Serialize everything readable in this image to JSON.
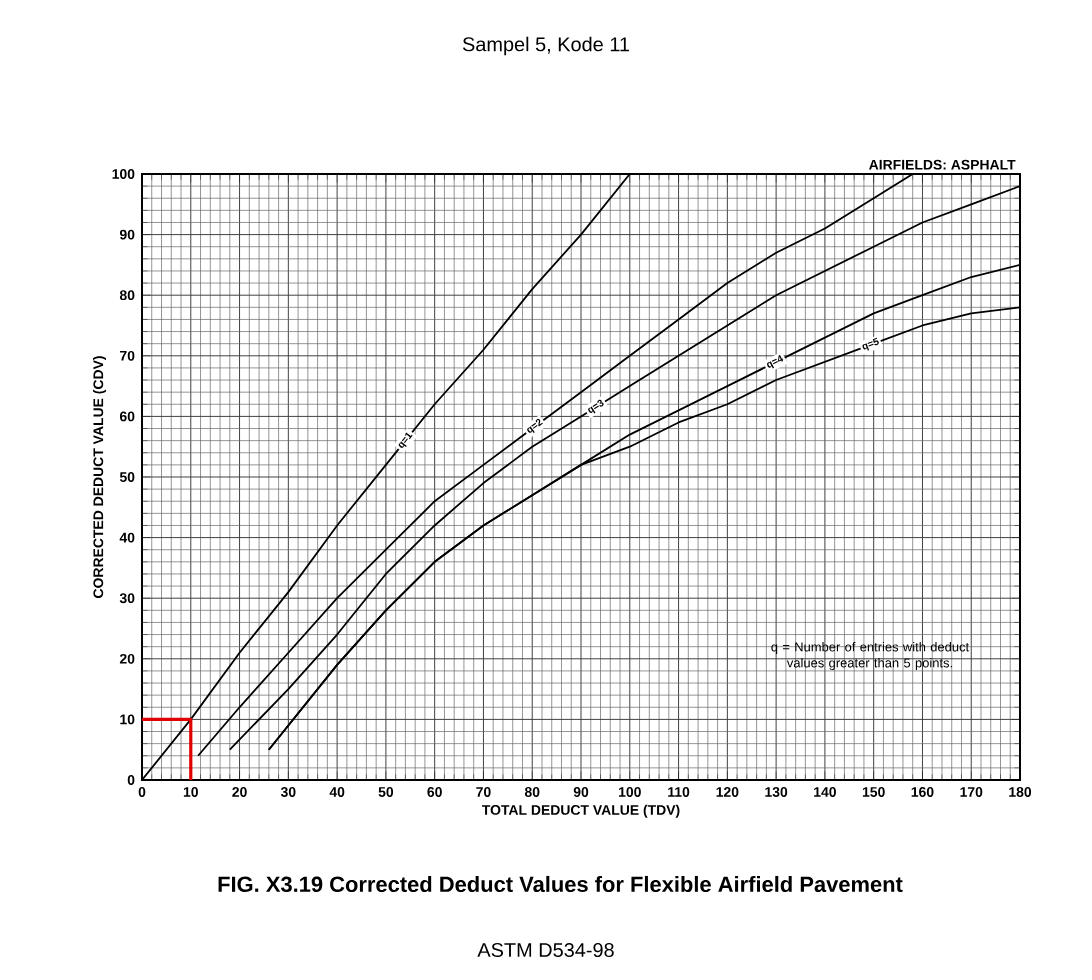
{
  "chart_data": {
    "type": "line",
    "title": "Sampel 5, Kode 11",
    "xlabel": "TOTAL DEDUCT VALUE (TDV)",
    "ylabel": "CORRECTED DEDUCT VALUE (CDV)",
    "xlim": [
      0,
      180
    ],
    "ylim": [
      0,
      100
    ],
    "xticks": [
      0,
      10,
      20,
      30,
      40,
      50,
      60,
      70,
      80,
      90,
      100,
      110,
      120,
      130,
      140,
      150,
      160,
      170,
      180
    ],
    "yticks": [
      0,
      10,
      20,
      30,
      40,
      50,
      60,
      70,
      80,
      90,
      100
    ],
    "grid": true,
    "marker": "none",
    "line_style": "solid",
    "series": [
      {
        "name": "q=1",
        "color": "#000000",
        "x": [
          0,
          10,
          20,
          30,
          40,
          50,
          60,
          70,
          80,
          90,
          100
        ],
        "values": [
          0,
          10,
          21,
          31,
          42,
          52,
          62,
          71,
          81,
          90,
          100
        ]
      },
      {
        "name": "q=2",
        "color": "#000000",
        "x": [
          11.5,
          20,
          30,
          40,
          50,
          60,
          70,
          80,
          90,
          100,
          110,
          120,
          130,
          140,
          150,
          158
        ],
        "values": [
          4,
          12,
          21,
          30,
          38,
          46,
          52,
          58,
          64,
          70,
          76,
          82,
          87,
          91,
          96,
          100
        ]
      },
      {
        "name": "q=3",
        "color": "#000000",
        "x": [
          18,
          30,
          40,
          50,
          60,
          70,
          80,
          90,
          100,
          110,
          120,
          130,
          140,
          150,
          160,
          170,
          180
        ],
        "values": [
          5,
          15,
          24,
          34,
          42,
          49,
          55,
          60,
          65,
          70,
          75,
          80,
          84,
          88,
          92,
          95,
          98
        ]
      },
      {
        "name": "q=4",
        "color": "#000000",
        "x": [
          26,
          40,
          50,
          60,
          70,
          80,
          90,
          100,
          110,
          120,
          130,
          140,
          150,
          160,
          170,
          180
        ],
        "values": [
          5,
          19,
          28,
          36,
          42,
          47,
          52,
          57,
          61,
          65,
          69,
          73,
          77,
          80,
          83,
          85
        ]
      },
      {
        "name": "q=5",
        "color": "#000000",
        "x": [
          26,
          40,
          50,
          60,
          70,
          80,
          90,
          100,
          110,
          120,
          130,
          140,
          150,
          160,
          170,
          180
        ],
        "values": [
          5,
          19,
          28,
          36,
          42,
          47,
          52,
          55,
          59,
          62,
          66,
          69,
          72,
          75,
          77,
          78
        ]
      },
      {
        "color": "#e00000",
        "x": [
          0,
          10,
          10
        ],
        "values": [
          10,
          10,
          0
        ]
      }
    ],
    "annotations": [
      "AIRFIELDS:  ASPHALT",
      "q = Number of entries with deduct values greater than 5 points.",
      "FIG. X3.19 Corrected Deduct Values for Flexible Airfield Pavement",
      "ASTM D534-98"
    ]
  }
}
